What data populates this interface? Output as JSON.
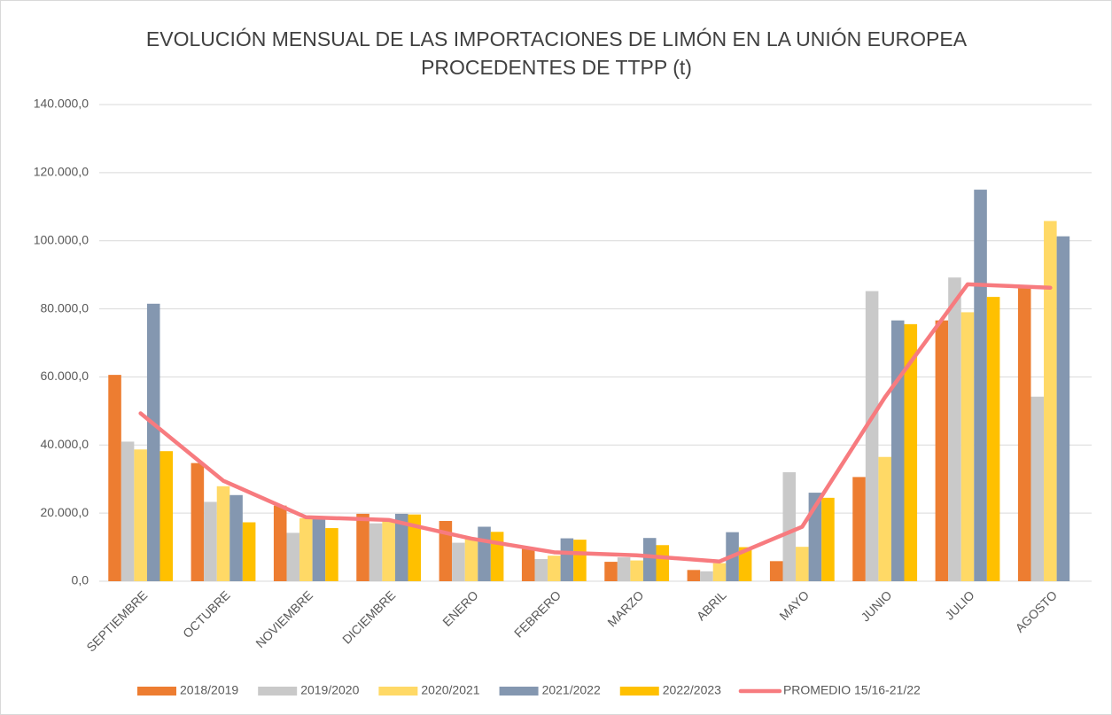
{
  "chart_data": {
    "type": "bar",
    "title": [
      "EVOLUCIÓN MENSUAL DE LAS IMPORTACIONES DE LIMÓN EN LA UNIÓN EUROPEA",
      "PROCEDENTES DE TTPP (t)"
    ],
    "categories": [
      "SEPTIEMBRE",
      "OCTUBRE",
      "NOVIEMBRE",
      "DICIEMBRE",
      "ENERO",
      "FEBRERO",
      "MARZO",
      "ABRIL",
      "MAYO",
      "JUNIO",
      "JULIO",
      "AGOSTO"
    ],
    "series": [
      {
        "name": "2018/2019",
        "color": "#ed7d31",
        "values": [
          60600,
          34700,
          22200,
          19800,
          17700,
          9800,
          5700,
          3300,
          5900,
          30600,
          76600,
          86000
        ]
      },
      {
        "name": "2019/2020",
        "color": "#c9c9c9",
        "values": [
          41000,
          23300,
          14200,
          17000,
          11300,
          6500,
          7000,
          2900,
          32000,
          85200,
          89200,
          54200
        ]
      },
      {
        "name": "2020/2021",
        "color": "#ffd966",
        "values": [
          38700,
          27900,
          18500,
          18000,
          12500,
          7500,
          6100,
          5300,
          10100,
          36500,
          79000,
          105800
        ]
      },
      {
        "name": "2021/2022",
        "color": "#8497b0",
        "values": [
          81500,
          25300,
          18300,
          19800,
          16000,
          12600,
          12700,
          14400,
          26000,
          76600,
          115000,
          101300
        ]
      },
      {
        "name": "2022/2023",
        "color": "#ffc000",
        "values": [
          38200,
          17300,
          15600,
          19600,
          14500,
          12200,
          10600,
          10000,
          24500,
          75500,
          83500,
          null
        ]
      },
      {
        "name": "PROMEDIO 15/16-21/22",
        "color": "#f77b7f",
        "type": "line",
        "values": [
          49300,
          29500,
          18800,
          18000,
          12500,
          8500,
          7600,
          5800,
          16000,
          54000,
          87200,
          86200
        ]
      }
    ],
    "ylim": [
      0,
      140000
    ],
    "yticks": [
      {
        "value": 0,
        "label": "0,0"
      },
      {
        "value": 20000,
        "label": "20.000,0"
      },
      {
        "value": 40000,
        "label": "40.000,0"
      },
      {
        "value": 60000,
        "label": "60.000,0"
      },
      {
        "value": 80000,
        "label": "80.000,0"
      },
      {
        "value": 100000,
        "label": "100.000,0"
      },
      {
        "value": 120000,
        "label": "120.000,0"
      },
      {
        "value": 140000,
        "label": "140.000,0"
      }
    ],
    "grid": true,
    "legend": "bottom"
  }
}
